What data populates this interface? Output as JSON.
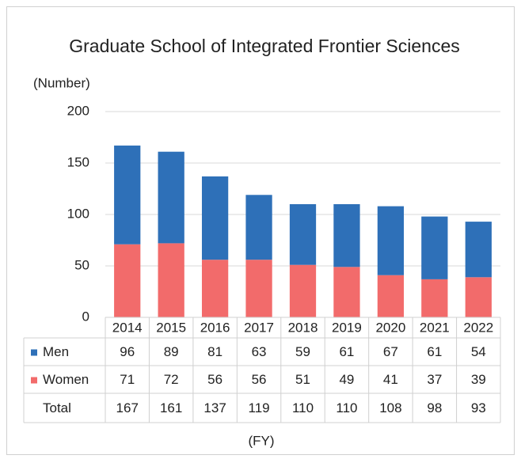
{
  "chart_data": {
    "type": "bar",
    "stacked": true,
    "title": "Graduate School of Integrated Frontier Sciences",
    "y_label": "(Number)",
    "x_label": "(FY)",
    "categories": [
      "2014",
      "2015",
      "2016",
      "2017",
      "2018",
      "2019",
      "2020",
      "2021",
      "2022"
    ],
    "series": [
      {
        "name": "Men",
        "color": "#2e70b8",
        "values": [
          96,
          89,
          81,
          63,
          59,
          61,
          67,
          61,
          54
        ]
      },
      {
        "name": "Women",
        "color": "#f26b6b",
        "values": [
          71,
          72,
          56,
          56,
          51,
          49,
          41,
          37,
          39
        ]
      }
    ],
    "totals_label": "Total",
    "totals": [
      167,
      161,
      137,
      119,
      110,
      110,
      108,
      98,
      93
    ],
    "ylim": [
      0,
      200
    ],
    "yticks": [
      0,
      50,
      100,
      150,
      200
    ],
    "grid": true
  }
}
